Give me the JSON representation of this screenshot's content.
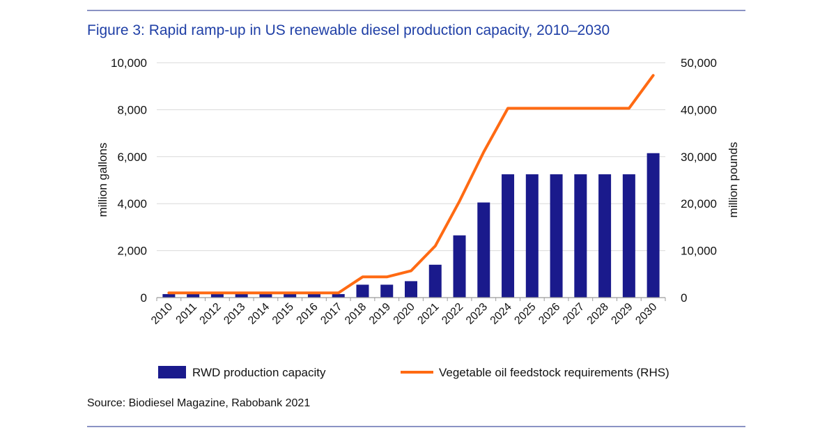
{
  "title": "Figure 3: Rapid ramp-up in US renewable diesel production capacity, 2010–2030",
  "source": "Source: Biodiesel Magazine, Rabobank 2021",
  "colors": {
    "bar": "#1a1a8c",
    "line": "#ff6a13",
    "grid": "#d9d9d9",
    "title": "#1f3fa6"
  },
  "chart_data": {
    "type": "bar",
    "categories": [
      "2010",
      "2011",
      "2012",
      "2013",
      "2014",
      "2015",
      "2016",
      "2017",
      "2018",
      "2019",
      "2020",
      "2021",
      "2022",
      "2023",
      "2024",
      "2025",
      "2026",
      "2027",
      "2028",
      "2029",
      "2030"
    ],
    "series": [
      {
        "name": "RWD production capacity",
        "type": "bar",
        "axis": "left",
        "values": [
          150,
          150,
          150,
          150,
          150,
          150,
          150,
          150,
          550,
          550,
          700,
          1400,
          2650,
          4050,
          5250,
          5250,
          5250,
          5250,
          5250,
          5250,
          6150
        ]
      },
      {
        "name": "Vegetable oil feedstock requirements (RHS)",
        "type": "line",
        "axis": "right",
        "values": [
          1000,
          1000,
          1000,
          1000,
          1000,
          1000,
          1000,
          1000,
          4400,
          4400,
          5700,
          11000,
          20500,
          31000,
          40300,
          40300,
          40300,
          40300,
          40300,
          40300,
          47300
        ]
      }
    ],
    "ylabel": "million gallons",
    "y2label": "million pounds",
    "ylim": [
      0,
      10000
    ],
    "y2lim": [
      0,
      50000
    ],
    "yticks": [
      "10,000",
      "8,000",
      "6,000",
      "4,000",
      "2,000",
      "0"
    ],
    "y2ticks": [
      "50,000",
      "40,000",
      "30,000",
      "20,000",
      "10,000",
      "0"
    ],
    "grid": true,
    "legend_position": "bottom"
  }
}
